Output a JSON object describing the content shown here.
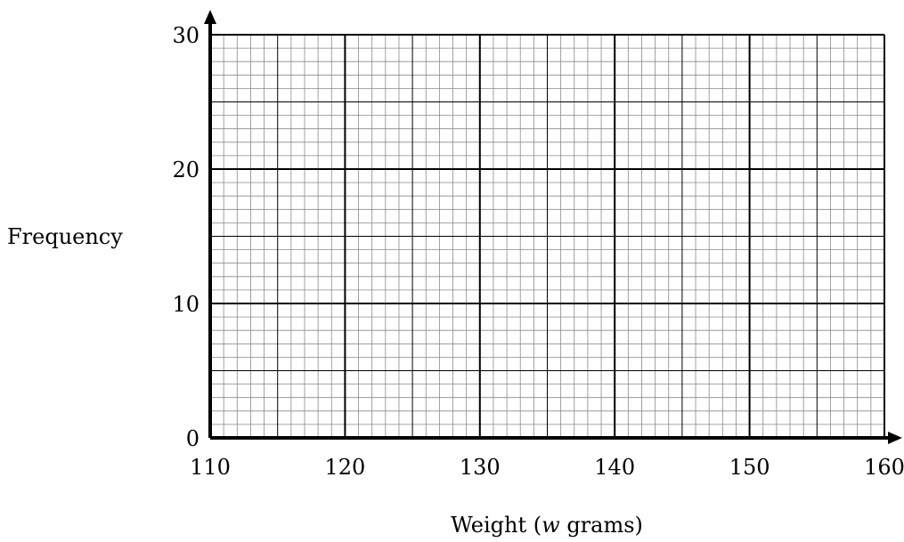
{
  "chart_data": {
    "type": "scatter",
    "title": "",
    "xlabel": "Weight (w grams)",
    "xlabel_parts": {
      "before": "Weight (",
      "variable": "w",
      "after": " grams)"
    },
    "ylabel": "Frequency",
    "xlim": [
      110,
      160
    ],
    "ylim": [
      0,
      30
    ],
    "x_ticks": [
      "110",
      "120",
      "130",
      "140",
      "150",
      "160"
    ],
    "y_ticks": [
      "0",
      "10",
      "20",
      "30"
    ],
    "grid": true,
    "grid_spacing": {
      "x_minor": 1,
      "x_mid": 5,
      "x_major": 10,
      "y_minor": 1,
      "y_mid": 5,
      "y_major": 10
    },
    "series": [],
    "colors": {
      "minor_grid": "#8a8a8a",
      "major_grid": "#000000",
      "axis": "#000000"
    }
  }
}
